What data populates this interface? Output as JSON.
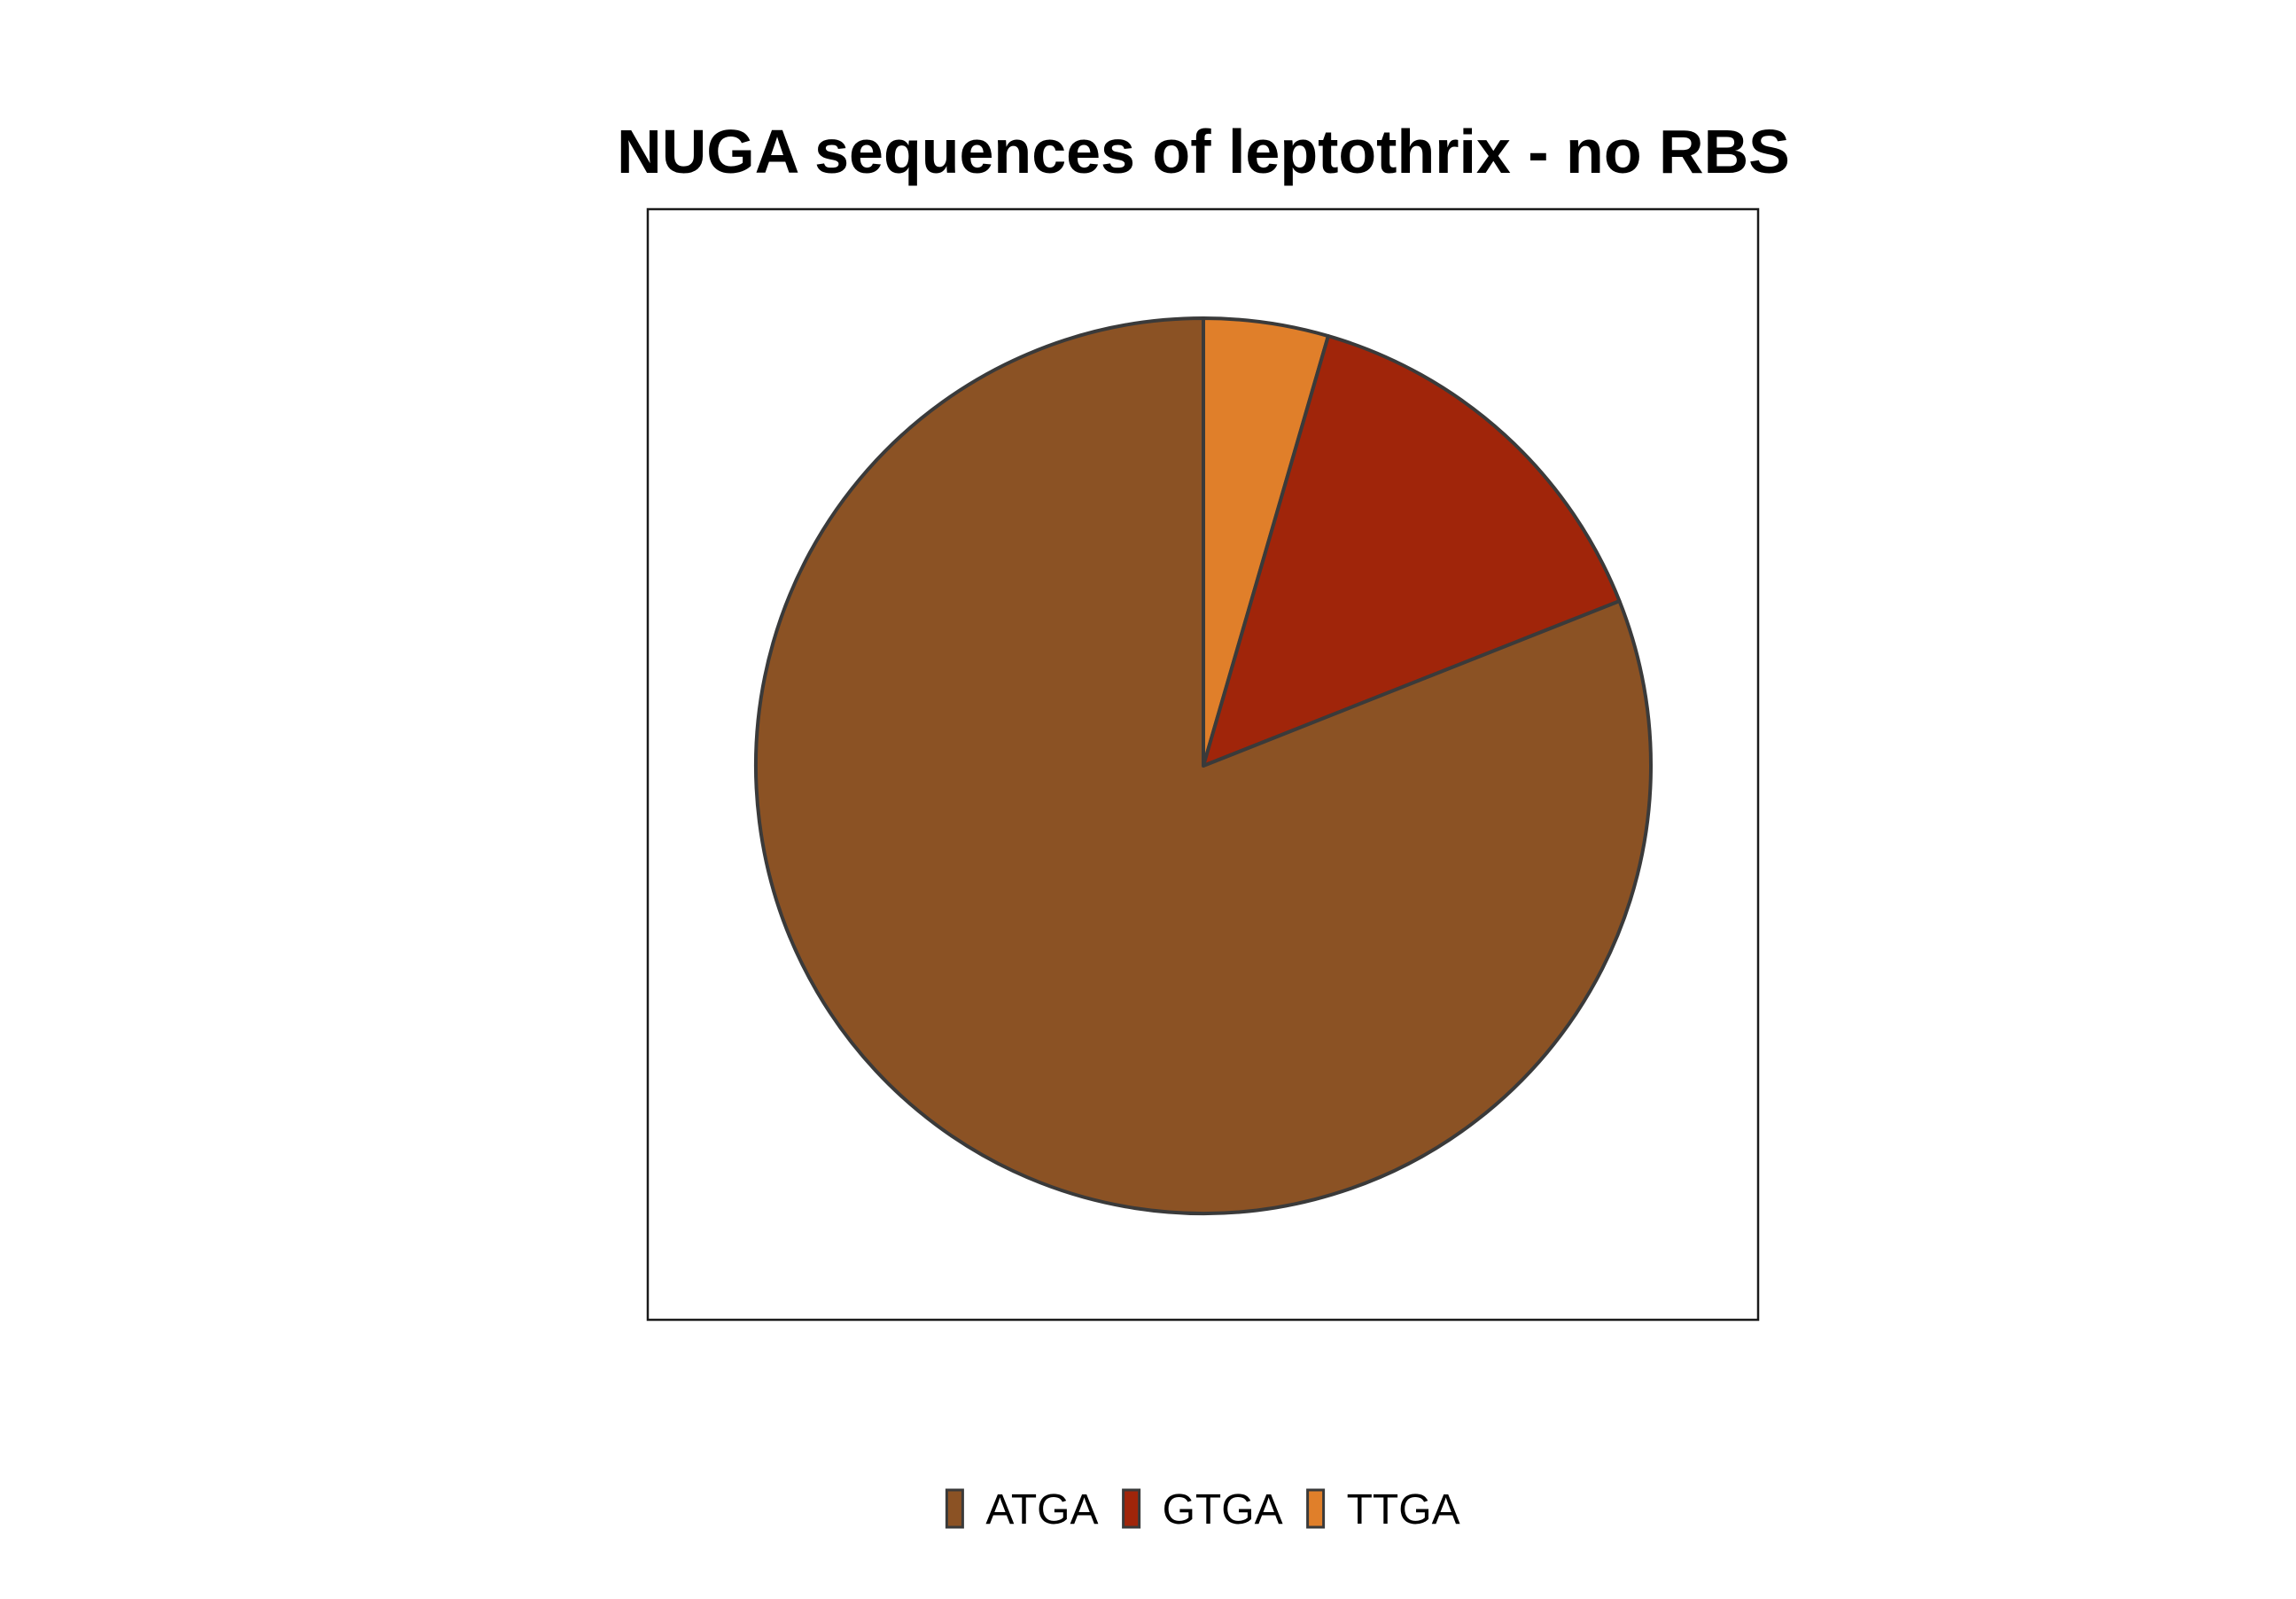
{
  "chart_data": {
    "type": "pie",
    "title": "NUGA sequences of leptothrix - no RBS",
    "categories": [
      "ATGA",
      "GTGA",
      "TTGA"
    ],
    "values": [
      81,
      14.5,
      4.5
    ],
    "colors": {
      "ATGA": "#8B5224",
      "GTGA": "#A0250A",
      "TTGA": "#E07F2A"
    },
    "slice_order": [
      "TTGA",
      "GTGA",
      "ATGA"
    ],
    "start_angle_deg": 0,
    "direction": "clockwise",
    "stroke_color": "#3a3a3a",
    "legend": {
      "position": "bottom",
      "items": [
        "ATGA",
        "GTGA",
        "TTGA"
      ]
    }
  }
}
